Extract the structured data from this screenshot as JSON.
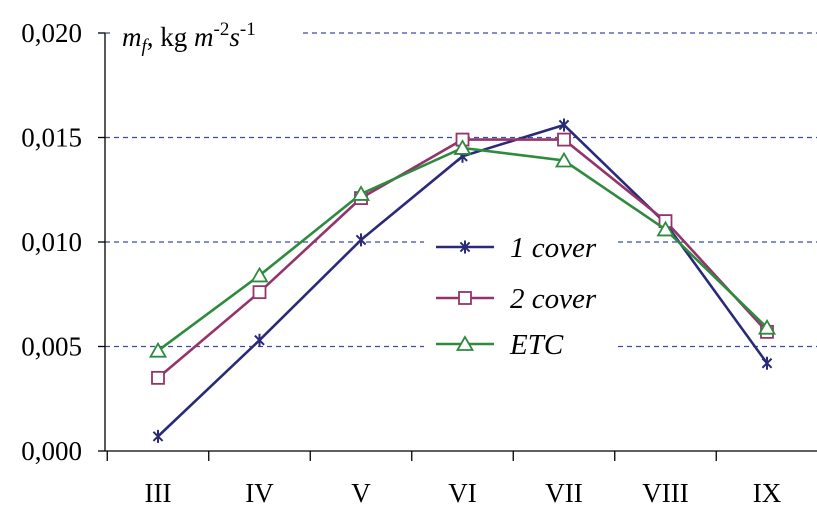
{
  "chart_data": {
    "type": "line",
    "ylabel": {
      "m": "m",
      "sub": "f",
      "comma": ",",
      "kg": " kg ",
      "m2": "m",
      "exp1": "-2",
      "s": "s",
      "exp2": "-1"
    },
    "categories": [
      "III",
      "IV",
      "V",
      "VI",
      "VII",
      "VIII",
      "IX"
    ],
    "ylim": [
      0,
      0.02
    ],
    "yticks": [
      0.0,
      0.005,
      0.01,
      0.015,
      0.02
    ],
    "ytick_labels": [
      "0,000",
      "0,005",
      "0,010",
      "0,015",
      "0,020"
    ],
    "grid": "horizontal dashed",
    "legend_position": "center-right",
    "series": [
      {
        "name": "1 cover",
        "color": "#2b2a78",
        "marker": "star",
        "values": [
          0.0007,
          0.0053,
          0.0101,
          0.0141,
          0.0156,
          0.0109,
          0.0042
        ]
      },
      {
        "name": "2 cover",
        "color": "#93356a",
        "marker": "square",
        "values": [
          0.0035,
          0.0076,
          0.0121,
          0.0149,
          0.0149,
          0.011,
          0.0057
        ]
      },
      {
        "name": "ETC",
        "color": "#2e8b3e",
        "marker": "triangle",
        "values": [
          0.0048,
          0.0084,
          0.0123,
          0.0145,
          0.0139,
          0.0106,
          0.0059
        ]
      }
    ]
  }
}
